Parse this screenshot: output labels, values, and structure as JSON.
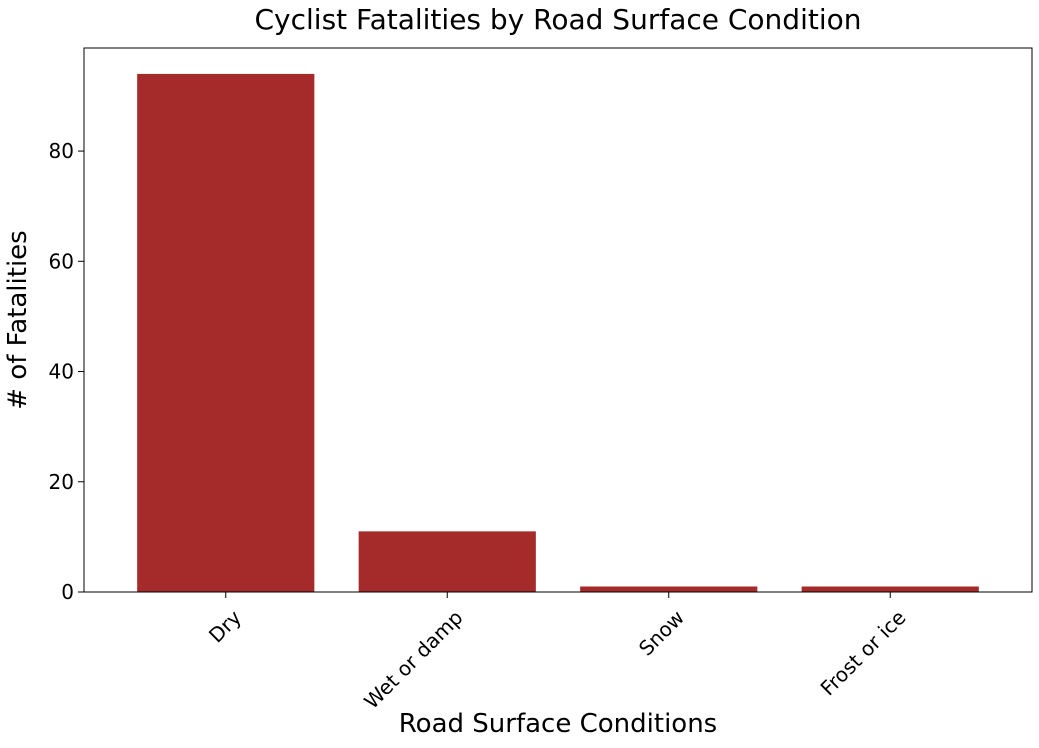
{
  "chart_data": {
    "type": "bar",
    "title": "Cyclist Fatalities by Road Surface Condition",
    "xlabel": "Road Surface Conditions",
    "ylabel": "# of Fatalities",
    "categories": [
      "Dry",
      "Wet or damp",
      "Snow",
      "Frost or ice"
    ],
    "values": [
      94,
      11,
      1,
      1
    ],
    "ylim": [
      0,
      98.7
    ],
    "yticks": [
      0,
      20,
      40,
      60,
      80
    ],
    "x_tick_rotation": 45,
    "grid": false,
    "legend": "none",
    "bar_color": "#a52a2a"
  }
}
